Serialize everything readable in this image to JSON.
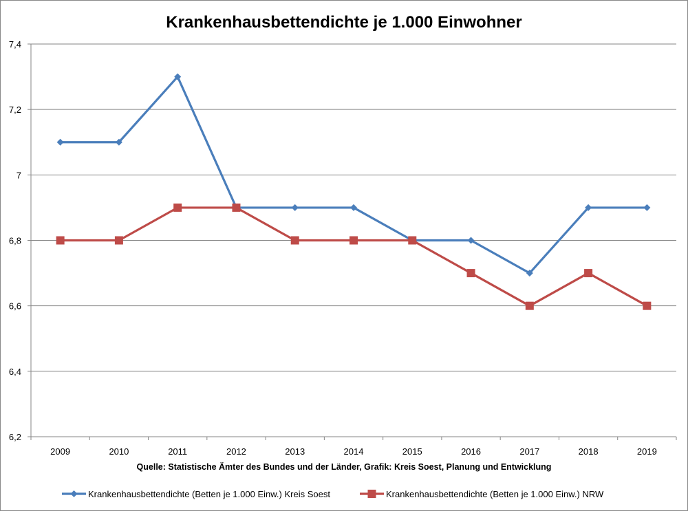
{
  "chart_data": {
    "type": "line",
    "title": "Krankenhausbettendichte je 1.000 Einwohner",
    "xlabel": "Quelle: Statistische Ämter des Bundes und der Länder, Grafik: Kreis Soest, Planung und Entwicklung",
    "ylabel": "",
    "categories": [
      "2009",
      "2010",
      "2011",
      "2012",
      "2013",
      "2014",
      "2015",
      "2016",
      "2017",
      "2018",
      "2019"
    ],
    "ylim": [
      6.2,
      7.4
    ],
    "yticks": [
      6.2,
      6.4,
      6.6,
      6.8,
      7.0,
      7.2,
      7.4
    ],
    "ytick_labels": [
      "6,2",
      "6,4",
      "6,6",
      "6,8",
      "7",
      "7,2",
      "7,4"
    ],
    "grid": true,
    "legend_placement": "bottom",
    "series": [
      {
        "name": "Krankenhausbettendichte (Betten je 1.000 Einw.) Kreis Soest",
        "color": "#4a7ebb",
        "marker": "diamond",
        "values": [
          7.1,
          7.1,
          7.3,
          6.9,
          6.9,
          6.9,
          6.8,
          6.8,
          6.7,
          6.9,
          6.9
        ]
      },
      {
        "name": "Krankenhausbettendichte (Betten je 1.000 Einw.) NRW",
        "color": "#be4b48",
        "marker": "square",
        "values": [
          6.8,
          6.8,
          6.9,
          6.9,
          6.8,
          6.8,
          6.8,
          6.7,
          6.6,
          6.7,
          6.6
        ]
      }
    ]
  }
}
